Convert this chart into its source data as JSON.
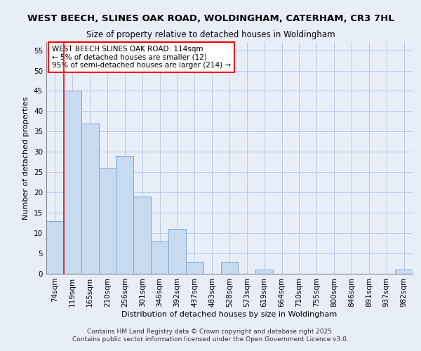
{
  "title": "WEST BEECH, SLINES OAK ROAD, WOLDINGHAM, CATERHAM, CR3 7HL",
  "subtitle": "Size of property relative to detached houses in Woldingham",
  "xlabel": "Distribution of detached houses by size in Woldingham",
  "ylabel": "Number of detached properties",
  "categories": [
    "74sqm",
    "119sqm",
    "165sqm",
    "210sqm",
    "256sqm",
    "301sqm",
    "346sqm",
    "392sqm",
    "437sqm",
    "483sqm",
    "528sqm",
    "573sqm",
    "619sqm",
    "664sqm",
    "710sqm",
    "755sqm",
    "800sqm",
    "846sqm",
    "891sqm",
    "937sqm",
    "982sqm"
  ],
  "values": [
    13,
    45,
    37,
    26,
    29,
    19,
    8,
    11,
    3,
    0,
    3,
    0,
    1,
    0,
    0,
    0,
    0,
    0,
    0,
    0,
    1
  ],
  "bar_color": "#c8daf0",
  "bar_edge_color": "#7aaad0",
  "annotation_box_text": "WEST BEECH SLINES OAK ROAD: 114sqm\n← 5% of detached houses are smaller (12)\n95% of semi-detached houses are larger (214) →",
  "ylim": [
    0,
    57
  ],
  "yticks": [
    0,
    5,
    10,
    15,
    20,
    25,
    30,
    35,
    40,
    45,
    50,
    55
  ],
  "grid_color": "#b8c8e8",
  "bg_color": "#e8eef8",
  "footer_line1": "Contains HM Land Registry data © Crown copyright and database right 2025.",
  "footer_line2": "Contains public sector information licensed under the Open Government Licence v3.0.",
  "red_line_xindex": 1,
  "title_fontsize": 9.5,
  "subtitle_fontsize": 8.5,
  "annotation_fontsize": 7.5,
  "axis_label_fontsize": 8,
  "tick_fontsize": 7.5
}
